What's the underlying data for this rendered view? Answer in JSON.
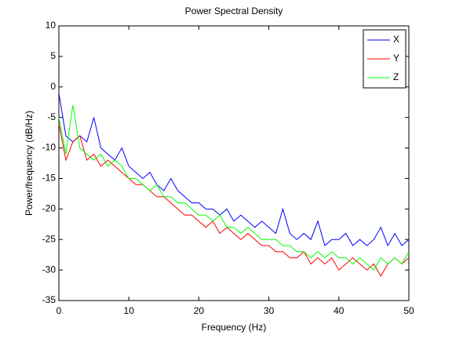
{
  "chart_data": {
    "type": "line",
    "title": "Power Spectral Density",
    "xlabel": "Frequency (Hz)",
    "ylabel": "Power/frequency (dB/Hz)",
    "x": [
      0,
      1,
      2,
      3,
      4,
      5,
      6,
      7,
      8,
      9,
      10,
      11,
      12,
      13,
      14,
      15,
      16,
      17,
      18,
      19,
      20,
      21,
      22,
      23,
      24,
      25,
      26,
      27,
      28,
      29,
      30,
      31,
      32,
      33,
      34,
      35,
      36,
      37,
      38,
      39,
      40,
      41,
      42,
      43,
      44,
      45,
      46,
      47,
      48,
      49,
      50
    ],
    "series": [
      {
        "name": "X",
        "color": "#0000ff",
        "values": [
          -1,
          -8,
          -9,
          -8,
          -9,
          -5,
          -10,
          -11,
          -12,
          -10,
          -13,
          -14,
          -15,
          -14,
          -16,
          -17,
          -15,
          -17,
          -18,
          -19,
          -19,
          -20,
          -20,
          -21,
          -20,
          -22,
          -21,
          -22,
          -23,
          -22,
          -23,
          -24,
          -20,
          -24,
          -25,
          -24,
          -25,
          -22,
          -26,
          -25,
          -25,
          -24,
          -26,
          -25,
          -26,
          -25,
          -23,
          -26,
          -24,
          -26,
          -25
        ]
      },
      {
        "name": "Y",
        "color": "#ff0000",
        "values": [
          -6,
          -12,
          -9,
          -8,
          -12,
          -11,
          -13,
          -12,
          -13,
          -14,
          -15,
          -16,
          -16,
          -17,
          -18,
          -18,
          -19,
          -20,
          -21,
          -21,
          -22,
          -23,
          -22,
          -24,
          -23,
          -24,
          -25,
          -24,
          -25,
          -26,
          -26,
          -27,
          -27,
          -28,
          -28,
          -27,
          -29,
          -28,
          -29,
          -28,
          -30,
          -29,
          -28,
          -29,
          -30,
          -29,
          -31,
          -29,
          -28,
          -29,
          -28
        ]
      },
      {
        "name": "Z",
        "color": "#00ff00",
        "values": [
          -5,
          -11,
          -3,
          -10,
          -11,
          -12,
          -11,
          -13,
          -12,
          -13,
          -15,
          -15,
          -16,
          -17,
          -16,
          -18,
          -18,
          -19,
          -19,
          -20,
          -21,
          -21,
          -22,
          -21,
          -23,
          -23,
          -24,
          -23,
          -24,
          -25,
          -25,
          -25,
          -26,
          -26,
          -27,
          -27,
          -28,
          -27,
          -28,
          -27,
          -28,
          -28,
          -29,
          -28,
          -29,
          -30,
          -28,
          -29,
          -28,
          -29,
          -27
        ]
      }
    ],
    "xlim": [
      0,
      50
    ],
    "xticks": [
      0,
      10,
      20,
      30,
      40,
      50
    ],
    "ylim": [
      -35,
      10
    ],
    "yticks": [
      -35,
      -30,
      -25,
      -20,
      -15,
      -10,
      -5,
      0,
      5,
      10
    ],
    "legend": "upper-right"
  }
}
